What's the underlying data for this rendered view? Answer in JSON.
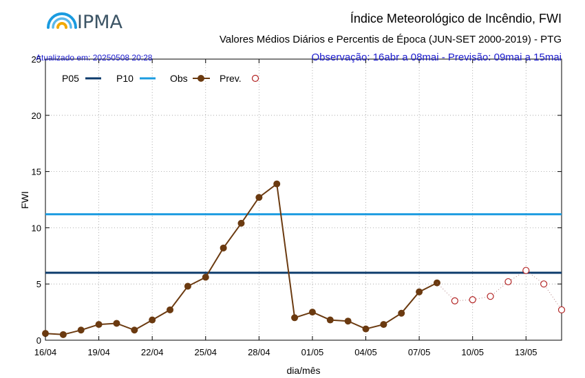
{
  "header": {
    "logo_text": "IPMA",
    "title": "Índice Meteorológico de Incêndio, FWI",
    "subtitle": "Valores Médios Diários e Percentis de Época (JUN-SET 2000-2019) - PTG",
    "updated": "Atualizado em: 20250508 20:28",
    "period": "Observação: 16abr a 08mai  -  Previsão: 09mai a 15mai"
  },
  "colors": {
    "p05": "#0b3a6b",
    "p10": "#1a9be0",
    "obs": "#6b3a10",
    "prev": "#b22222",
    "info_text": "#1a1acc"
  },
  "chart_data": {
    "type": "line",
    "xlabel": "dia/mês",
    "ylabel": "FWI",
    "ylim": [
      0,
      25
    ],
    "yticks": [
      0,
      5,
      10,
      15,
      20,
      25
    ],
    "x_start": "16/04",
    "x_end": "15/05",
    "xticks": [
      "16/04",
      "19/04",
      "22/04",
      "25/04",
      "28/04",
      "01/05",
      "04/05",
      "07/05",
      "10/05",
      "13/05"
    ],
    "grid": true,
    "legend_position": "top-left",
    "legend": [
      {
        "label": "P05",
        "style": "line",
        "series": "P05"
      },
      {
        "label": "P10",
        "style": "line",
        "series": "P10"
      },
      {
        "label": "Obs",
        "style": "line-point",
        "series": "Obs"
      },
      {
        "label": "Prev.",
        "style": "open-point",
        "series": "Prev."
      }
    ],
    "reference_lines": [
      {
        "name": "P05",
        "value": 6.0
      },
      {
        "name": "P10",
        "value": 11.2
      }
    ],
    "series": [
      {
        "name": "Obs",
        "x": [
          "16/04",
          "17/04",
          "18/04",
          "19/04",
          "20/04",
          "21/04",
          "22/04",
          "23/04",
          "24/04",
          "25/04",
          "26/04",
          "27/04",
          "28/04",
          "29/04",
          "30/04",
          "01/05",
          "02/05",
          "03/05",
          "04/05",
          "05/05",
          "06/05",
          "07/05",
          "08/05"
        ],
        "values": [
          0.6,
          0.5,
          0.9,
          1.4,
          1.5,
          0.9,
          1.8,
          2.7,
          4.8,
          5.6,
          8.2,
          10.4,
          12.7,
          13.9,
          2.0,
          2.5,
          1.8,
          1.7,
          1.0,
          1.4,
          2.4,
          4.3,
          5.1
        ]
      },
      {
        "name": "Prev.",
        "x": [
          "08/05",
          "09/05",
          "10/05",
          "11/05",
          "12/05",
          "13/05",
          "14/05",
          "15/05"
        ],
        "values": [
          5.1,
          3.5,
          3.6,
          3.9,
          5.2,
          6.2,
          5.0,
          2.7
        ]
      }
    ]
  }
}
